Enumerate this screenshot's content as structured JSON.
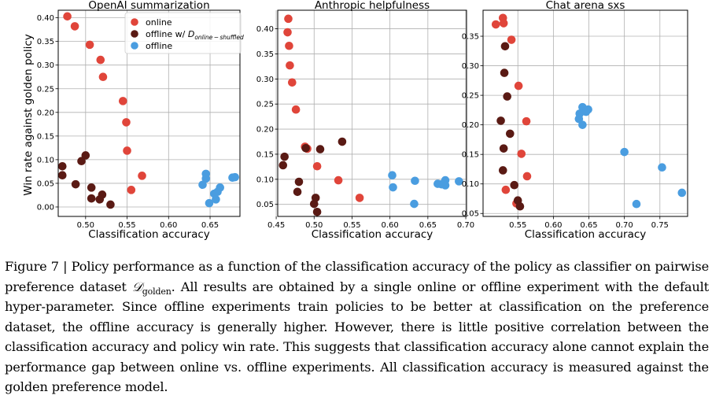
{
  "colors": {
    "online": "#e0453a",
    "offline_shuffled": "#5a1a14",
    "offline": "#4a9de0"
  },
  "shared": {
    "ylabel": "Win rate against golden policy",
    "xlabel": "Classification accuracy"
  },
  "legend": {
    "online": "online",
    "offline_shuffled_prefix": "offline w/ ",
    "offline_shuffled_math": "D",
    "offline_shuffled_sub": "online − shuffled",
    "offline": "offline"
  },
  "caption": {
    "lead": "Figure 7 | Policy performance as a function of the classification accuracy of the policy as classifier on pairwise preference dataset ",
    "math": "𝒟",
    "sub": "golden",
    "rest": ". All results are obtained by a single online or offline experiment with the default hyper-parameter. Since offline experiments train policies to be better at classification on the preference dataset, the offline accuracy is generally higher. However, there is little positive correlation between the classification accuracy and policy win rate. This suggests that classification accuracy alone cannot explain the performance gap between online vs. offline experiments. All classification accuracy is measured against the golden preference model."
  },
  "chart_data": [
    {
      "type": "scatter",
      "title": "OpenAI summarization",
      "xlabel": "Classification accuracy",
      "ylabel": "Win rate against golden policy",
      "xlim": [
        0.467,
        0.686
      ],
      "ylim": [
        -0.02,
        0.416
      ],
      "xticks": [
        {
          "v": 0.5,
          "t": "0.50"
        },
        {
          "v": 0.55,
          "t": "0.55"
        },
        {
          "v": 0.6,
          "t": "0.60"
        },
        {
          "v": 0.65,
          "t": "0.65"
        }
      ],
      "yticks": [
        {
          "v": 0.0,
          "t": "0.00"
        },
        {
          "v": 0.05,
          "t": "0.05"
        },
        {
          "v": 0.1,
          "t": "0.10"
        },
        {
          "v": 0.15,
          "t": "0.15"
        },
        {
          "v": 0.2,
          "t": "0.20"
        },
        {
          "v": 0.25,
          "t": "0.25"
        },
        {
          "v": 0.3,
          "t": "0.30"
        },
        {
          "v": 0.35,
          "t": "0.35"
        },
        {
          "v": 0.4,
          "t": "0.40"
        }
      ],
      "grid": true,
      "legend_position": "top-center",
      "series": [
        {
          "name": "online",
          "key": "online",
          "points": [
            [
              0.478,
              0.403
            ],
            [
              0.487,
              0.382
            ],
            [
              0.505,
              0.343
            ],
            [
              0.518,
              0.311
            ],
            [
              0.521,
              0.275
            ],
            [
              0.545,
              0.224
            ],
            [
              0.549,
              0.179
            ],
            [
              0.55,
              0.119
            ],
            [
              0.568,
              0.066
            ],
            [
              0.555,
              0.036
            ]
          ]
        },
        {
          "name": "offline w/ D online-shuffled",
          "key": "offline_shuffled",
          "points": [
            [
              0.472,
              0.086
            ],
            [
              0.472,
              0.067
            ],
            [
              0.5,
              0.109
            ],
            [
              0.495,
              0.097
            ],
            [
              0.488,
              0.048
            ],
            [
              0.507,
              0.041
            ],
            [
              0.507,
              0.018
            ],
            [
              0.52,
              0.026
            ],
            [
              0.517,
              0.016
            ],
            [
              0.53,
              0.005
            ]
          ]
        },
        {
          "name": "offline",
          "key": "offline",
          "points": [
            [
              0.645,
              0.07
            ],
            [
              0.645,
              0.06
            ],
            [
              0.641,
              0.047
            ],
            [
              0.662,
              0.041
            ],
            [
              0.659,
              0.032
            ],
            [
              0.655,
              0.028
            ],
            [
              0.657,
              0.016
            ],
            [
              0.649,
              0.008
            ],
            [
              0.677,
              0.062
            ],
            [
              0.68,
              0.063
            ]
          ]
        }
      ]
    },
    {
      "type": "scatter",
      "title": "Anthropic helpfulness",
      "xlabel": "Classification accuracy",
      "ylim": [
        0.026,
        0.437
      ],
      "xlim": [
        0.452,
        0.701
      ],
      "xticks": [
        {
          "v": 0.45,
          "t": "0.45"
        },
        {
          "v": 0.5,
          "t": "0.50"
        },
        {
          "v": 0.55,
          "t": "0.55"
        },
        {
          "v": 0.6,
          "t": "0.60"
        },
        {
          "v": 0.65,
          "t": "0.65"
        },
        {
          "v": 0.7,
          "t": "0.70"
        }
      ],
      "yticks": [
        {
          "v": 0.05,
          "t": "0.05"
        },
        {
          "v": 0.1,
          "t": "0.10"
        },
        {
          "v": 0.15,
          "t": "0.15"
        },
        {
          "v": 0.2,
          "t": "0.20"
        },
        {
          "v": 0.25,
          "t": "0.25"
        },
        {
          "v": 0.3,
          "t": "0.30"
        },
        {
          "v": 0.35,
          "t": "0.35"
        },
        {
          "v": 0.4,
          "t": "0.40"
        }
      ],
      "grid": true,
      "series": [
        {
          "name": "online",
          "key": "online",
          "points": [
            [
              0.466,
              0.42
            ],
            [
              0.465,
              0.393
            ],
            [
              0.467,
              0.366
            ],
            [
              0.468,
              0.327
            ],
            [
              0.471,
              0.293
            ],
            [
              0.476,
              0.239
            ],
            [
              0.488,
              0.165
            ],
            [
              0.491,
              0.161
            ],
            [
              0.504,
              0.126
            ],
            [
              0.532,
              0.098
            ],
            [
              0.56,
              0.063
            ]
          ]
        },
        {
          "name": "offline w/ D online-shuffled",
          "key": "offline_shuffled",
          "points": [
            [
              0.461,
              0.145
            ],
            [
              0.459,
              0.128
            ],
            [
              0.48,
              0.095
            ],
            [
              0.478,
              0.075
            ],
            [
              0.489,
              0.162
            ],
            [
              0.508,
              0.16
            ],
            [
              0.537,
              0.175
            ],
            [
              0.502,
              0.063
            ],
            [
              0.5,
              0.051
            ],
            [
              0.504,
              0.035
            ]
          ]
        },
        {
          "name": "offline",
          "key": "offline",
          "points": [
            [
              0.603,
              0.108
            ],
            [
              0.604,
              0.084
            ],
            [
              0.633,
              0.097
            ],
            [
              0.632,
              0.051
            ],
            [
              0.663,
              0.091
            ],
            [
              0.668,
              0.09
            ],
            [
              0.673,
              0.098
            ],
            [
              0.672,
              0.093
            ],
            [
              0.673,
              0.088
            ],
            [
              0.691,
              0.096
            ]
          ]
        }
      ]
    },
    {
      "type": "scatter",
      "title": "Chat arena sxs",
      "xlabel": "Classification accuracy",
      "xlim": [
        0.501,
        0.789
      ],
      "ylim": [
        0.045,
        0.394
      ],
      "xticks": [
        {
          "v": 0.55,
          "t": "0.55"
        },
        {
          "v": 0.6,
          "t": "0.60"
        },
        {
          "v": 0.65,
          "t": "0.65"
        },
        {
          "v": 0.7,
          "t": "0.70"
        },
        {
          "v": 0.75,
          "t": "0.75"
        }
      ],
      "yticks": [
        {
          "v": 0.05,
          "t": "0.05"
        },
        {
          "v": 0.1,
          "t": "0.10"
        },
        {
          "v": 0.15,
          "t": "0.15"
        },
        {
          "v": 0.2,
          "t": "0.20"
        },
        {
          "v": 0.25,
          "t": "0.25"
        },
        {
          "v": 0.3,
          "t": "0.30"
        },
        {
          "v": 0.35,
          "t": "0.35"
        }
      ],
      "grid": true,
      "series": [
        {
          "name": "online",
          "key": "online",
          "points": [
            [
              0.519,
              0.37
            ],
            [
              0.529,
              0.381
            ],
            [
              0.53,
              0.372
            ],
            [
              0.541,
              0.344
            ],
            [
              0.551,
              0.266
            ],
            [
              0.562,
              0.206
            ],
            [
              0.555,
              0.151
            ],
            [
              0.563,
              0.113
            ],
            [
              0.533,
              0.09
            ],
            [
              0.548,
              0.067
            ]
          ]
        },
        {
          "name": "offline w/ D online-shuffled",
          "key": "offline_shuffled",
          "points": [
            [
              0.532,
              0.333
            ],
            [
              0.531,
              0.288
            ],
            [
              0.535,
              0.248
            ],
            [
              0.526,
              0.207
            ],
            [
              0.539,
              0.185
            ],
            [
              0.53,
              0.16
            ],
            [
              0.529,
              0.123
            ],
            [
              0.545,
              0.098
            ],
            [
              0.55,
              0.072
            ],
            [
              0.553,
              0.062
            ]
          ]
        },
        {
          "name": "offline",
          "key": "offline",
          "points": [
            [
              0.641,
              0.23
            ],
            [
              0.646,
              0.222
            ],
            [
              0.649,
              0.226
            ],
            [
              0.637,
              0.219
            ],
            [
              0.636,
              0.21
            ],
            [
              0.641,
              0.2
            ],
            [
              0.7,
              0.154
            ],
            [
              0.753,
              0.128
            ],
            [
              0.717,
              0.066
            ],
            [
              0.781,
              0.085
            ]
          ]
        }
      ]
    }
  ]
}
